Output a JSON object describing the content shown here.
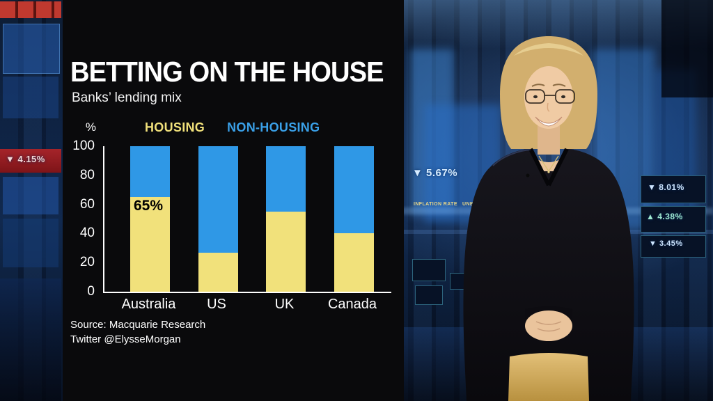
{
  "panel": {
    "title": "BETTING ON THE HOUSE",
    "subtitle": "Banks’ lending mix",
    "source_line1": "Source: Macquarie Research",
    "source_line2": "Twitter @ElysseMorgan"
  },
  "legend": {
    "items": [
      {
        "label": "HOUSING",
        "color": "#f1e17b"
      },
      {
        "label": "NON-HOUSING",
        "color": "#3aa0e8"
      }
    ]
  },
  "chart_data": {
    "type": "bar",
    "stacked": true,
    "title": "BETTING ON THE HOUSE",
    "subtitle": "Banks’ lending mix",
    "categories": [
      "Australia",
      "US",
      "UK",
      "Canada"
    ],
    "series": [
      {
        "name": "HOUSING",
        "color": "#f1e17b",
        "values": [
          65,
          27,
          55,
          40
        ]
      },
      {
        "name": "NON-HOUSING",
        "color": "#2f98e6",
        "values": [
          35,
          73,
          45,
          60
        ]
      }
    ],
    "ylabel": "%",
    "ylim": [
      0,
      100
    ],
    "yticks": [
      0,
      20,
      40,
      60,
      80,
      100
    ],
    "grid": false,
    "legend_position": "top",
    "annotations": [
      {
        "category": "Australia",
        "text": "65%"
      }
    ],
    "source": "Source: Macquarie Research, Twitter @ElysseMorgan"
  },
  "studio": {
    "tickers": [
      "▼ 4.15%",
      "▼ 5.67%",
      "▼ 8.01%",
      "▲ 4.38%",
      "▼ 3.45%"
    ],
    "labels": [
      "INFLATION RATE",
      "UNEMPLOYMENT"
    ]
  }
}
